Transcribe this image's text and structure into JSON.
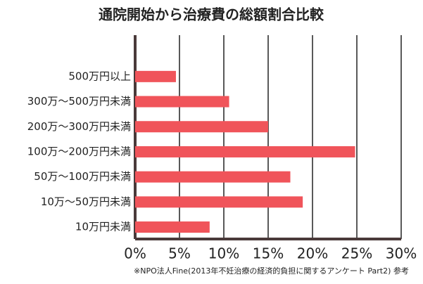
{
  "chart_data": {
    "type": "barh",
    "title": "通院開始から治療費の総額割合比較",
    "categories": [
      "500万円以上",
      "300万～500万円未満",
      "200万～300万円未満",
      "100万～200万円未満",
      "50万～100万円未満",
      "10万～50万円未満",
      "10万円未満"
    ],
    "values": [
      4.6,
      10.6,
      15.0,
      24.8,
      17.5,
      18.9,
      8.4
    ],
    "color": "#f0545a",
    "xlim": [
      0,
      30
    ],
    "xticks": [
      {
        "value": 0,
        "label": "0%"
      },
      {
        "value": 5,
        "label": "5%"
      },
      {
        "value": 10,
        "label": "10%"
      },
      {
        "value": 15,
        "label": "15%"
      },
      {
        "value": 20,
        "label": "20%"
      },
      {
        "value": 25,
        "label": "25%"
      },
      {
        "value": 30,
        "label": "30%"
      }
    ],
    "grid": true,
    "note": "※NPO法人Fine(2013年不妊治療の経済的負担に関するアンケート Part2) 参考"
  }
}
